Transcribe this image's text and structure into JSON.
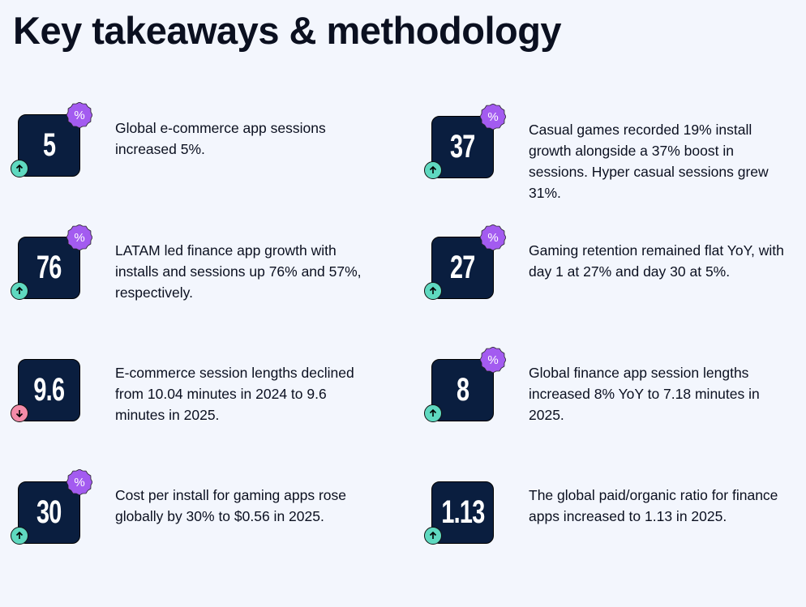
{
  "title": "Key takeaways & methodology",
  "items": [
    {
      "value": "5",
      "badge": "%",
      "trend": "up",
      "text": "Global e-commerce app sessions increased 5%."
    },
    {
      "value": "37",
      "badge": "%",
      "trend": "up",
      "text": "Casual games recorded 19% install growth alongside a 37% boost in sessions. Hyper casual sessions grew 31%."
    },
    {
      "value": "76",
      "badge": "%",
      "trend": "up",
      "text": "LATAM led finance app growth with installs and sessions up 76% and 57%, respectively."
    },
    {
      "value": "27",
      "badge": "%",
      "trend": "up",
      "text": "Gaming retention remained flat YoY, with day 1 at 27% and day 30 at 5%."
    },
    {
      "value": "9.6",
      "badge": "",
      "trend": "down",
      "text": "E-commerce session lengths declined from 10.04 minutes in 2024 to 9.6 minutes in 2025."
    },
    {
      "value": "8",
      "badge": "%",
      "trend": "up",
      "text": "Global finance app session lengths increased 8% YoY to 7.18 minutes in 2025."
    },
    {
      "value": "30",
      "badge": "%",
      "trend": "up",
      "text": "Cost per install for gaming apps rose globally by 30% to $0.56 in 2025."
    },
    {
      "value": "1.13",
      "badge": "",
      "trend": "up",
      "text": "The global paid/organic ratio for finance apps increased to 1.13 in 2025."
    }
  ]
}
